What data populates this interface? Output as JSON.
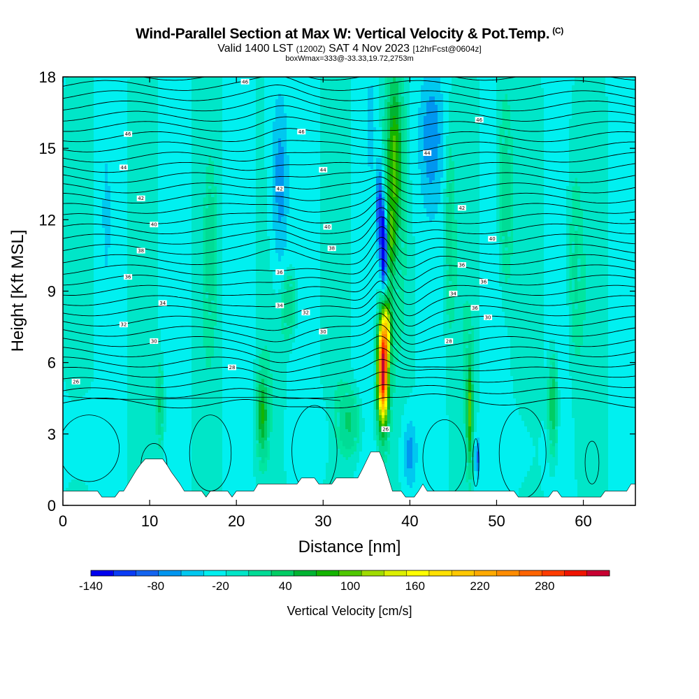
{
  "header": {
    "title": "Wind-Parallel Section at Max W: Vertical Velocity & Pot.Temp.",
    "copyright": "(C)",
    "valid_prefix": "Valid 1400 LST",
    "valid_utc": "(1200Z)",
    "valid_date": "SAT 4 Nov 2023",
    "forecast": "[12hrFcst@0604z]",
    "boxinfo": "boxWmax=333@-33.33,19.72,2753m"
  },
  "chart_data": {
    "type": "heatmap",
    "xlabel": "Distance [nm]",
    "ylabel": "Height [Kft MSL]",
    "xlim": [
      0,
      66
    ],
    "ylim": [
      0,
      18
    ],
    "x_ticks": [
      0,
      10,
      20,
      30,
      40,
      50,
      60
    ],
    "y_ticks": [
      0,
      3,
      6,
      9,
      12,
      15,
      18
    ],
    "colorbar": {
      "label": "Vertical Velocity [cm/s]",
      "range": [
        -140,
        340
      ],
      "tick_labels": [
        "-140",
        "-80",
        "-20",
        "40",
        "100",
        "160",
        "220",
        "280"
      ],
      "colors": [
        "#0000ee",
        "#0a3cf5",
        "#1464f0",
        "#0096f0",
        "#00c8f0",
        "#00f0f0",
        "#00e6c8",
        "#00dc96",
        "#00cd64",
        "#00b432",
        "#14b400",
        "#50c800",
        "#a0dc00",
        "#dcf000",
        "#ffff00",
        "#ffe100",
        "#ffc800",
        "#ffaa00",
        "#ff8c00",
        "#ff6400",
        "#ff3c00",
        "#f01400",
        "#c80032"
      ]
    },
    "max_updraft": {
      "x_nm": 36.9,
      "height_kft": 5.5,
      "value_cms": 333
    },
    "terrain_kft": [
      [
        0,
        0.6
      ],
      [
        4,
        0.6
      ],
      [
        4.5,
        0.35
      ],
      [
        6,
        0.35
      ],
      [
        6.5,
        0.6
      ],
      [
        7,
        0.6
      ],
      [
        7.5,
        0.9
      ],
      [
        8,
        1.2
      ],
      [
        8.5,
        1.5
      ],
      [
        9,
        1.75
      ],
      [
        9.5,
        1.95
      ],
      [
        11.5,
        1.95
      ],
      [
        12,
        1.7
      ],
      [
        12.5,
        1.4
      ],
      [
        13,
        1.15
      ],
      [
        13.5,
        0.9
      ],
      [
        14,
        0.6
      ],
      [
        16,
        0.6
      ],
      [
        16.5,
        0.35
      ],
      [
        17,
        0.6
      ],
      [
        18,
        0.6
      ],
      [
        19,
        0.6
      ],
      [
        19.5,
        0.35
      ],
      [
        20,
        0.6
      ],
      [
        22,
        0.6
      ],
      [
        22.5,
        0.9
      ],
      [
        27,
        0.9
      ],
      [
        27.5,
        1.15
      ],
      [
        29,
        1.15
      ],
      [
        29.5,
        0.9
      ],
      [
        31,
        0.9
      ],
      [
        31.5,
        1.15
      ],
      [
        34,
        1.15
      ],
      [
        34.5,
        1.5
      ],
      [
        35.5,
        2.25
      ],
      [
        36.5,
        2.25
      ],
      [
        37,
        1.8
      ],
      [
        37.5,
        1.2
      ],
      [
        38,
        0.6
      ],
      [
        39,
        0.6
      ],
      [
        39.5,
        0.35
      ],
      [
        40.5,
        0.35
      ],
      [
        41,
        0.6
      ],
      [
        41.5,
        0.9
      ],
      [
        42,
        0.6
      ],
      [
        52,
        0.6
      ],
      [
        52.5,
        0.35
      ],
      [
        56,
        0.35
      ],
      [
        56.5,
        0.6
      ],
      [
        57,
        0.6
      ],
      [
        57.5,
        0.35
      ],
      [
        62,
        0.35
      ],
      [
        62.5,
        0.6
      ],
      [
        65,
        0.6
      ],
      [
        65.5,
        0.9
      ],
      [
        66,
        0.9
      ]
    ],
    "theta_contour_labels": [
      {
        "x": 21.0,
        "y": 17.8,
        "text": "46"
      },
      {
        "x": 7.5,
        "y": 15.6,
        "text": "46"
      },
      {
        "x": 27.5,
        "y": 15.7,
        "text": "46"
      },
      {
        "x": 48.0,
        "y": 16.2,
        "text": "46"
      },
      {
        "x": 7.0,
        "y": 14.2,
        "text": "44"
      },
      {
        "x": 30.0,
        "y": 14.1,
        "text": "44"
      },
      {
        "x": 42.0,
        "y": 14.8,
        "text": "44"
      },
      {
        "x": 9.0,
        "y": 12.9,
        "text": "42"
      },
      {
        "x": 25.0,
        "y": 13.3,
        "text": "42"
      },
      {
        "x": 46.0,
        "y": 12.5,
        "text": "42"
      },
      {
        "x": 10.5,
        "y": 11.8,
        "text": "40"
      },
      {
        "x": 30.5,
        "y": 11.7,
        "text": "40"
      },
      {
        "x": 49.5,
        "y": 11.2,
        "text": "40"
      },
      {
        "x": 9.0,
        "y": 10.7,
        "text": "38"
      },
      {
        "x": 31.0,
        "y": 10.8,
        "text": "38"
      },
      {
        "x": 46.0,
        "y": 10.1,
        "text": "36"
      },
      {
        "x": 7.5,
        "y": 9.6,
        "text": "36"
      },
      {
        "x": 25.0,
        "y": 9.8,
        "text": "36"
      },
      {
        "x": 48.5,
        "y": 9.4,
        "text": "36"
      },
      {
        "x": 11.5,
        "y": 8.5,
        "text": "34"
      },
      {
        "x": 25.0,
        "y": 8.4,
        "text": "34"
      },
      {
        "x": 45.0,
        "y": 8.9,
        "text": "34"
      },
      {
        "x": 47.5,
        "y": 8.3,
        "text": "36"
      },
      {
        "x": 7.0,
        "y": 7.6,
        "text": "32"
      },
      {
        "x": 28.0,
        "y": 8.1,
        "text": "32"
      },
      {
        "x": 49.0,
        "y": 7.9,
        "text": "30"
      },
      {
        "x": 10.5,
        "y": 6.9,
        "text": "30"
      },
      {
        "x": 30.0,
        "y": 7.3,
        "text": "30"
      },
      {
        "x": 44.5,
        "y": 6.9,
        "text": "28"
      },
      {
        "x": 19.5,
        "y": 5.8,
        "text": "28"
      },
      {
        "x": 1.5,
        "y": 5.2,
        "text": "26"
      },
      {
        "x": 37.2,
        "y": 3.2,
        "text": "26"
      }
    ]
  }
}
